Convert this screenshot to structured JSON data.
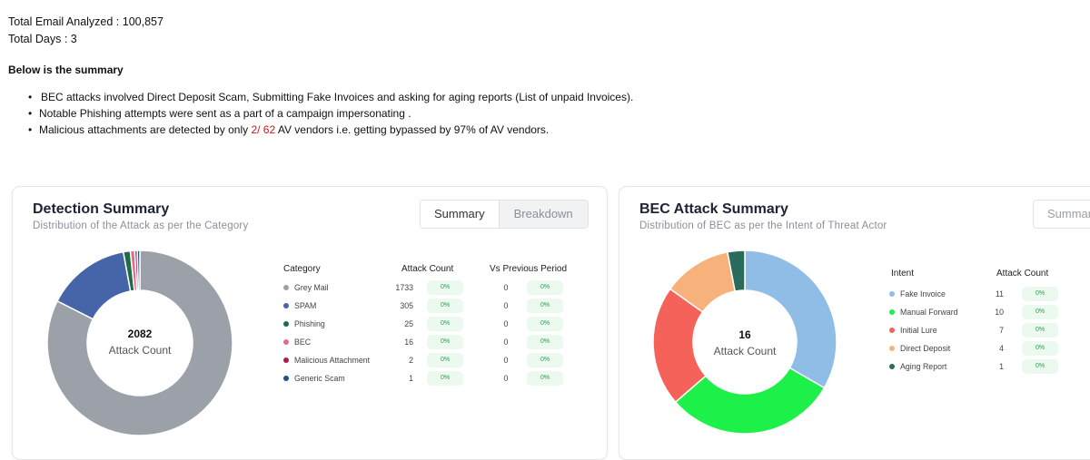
{
  "header": {
    "total_email_analyzed": "Total Email Analyzed : 100,857",
    "total_days": "Total Days : 3",
    "summary_heading": "Below is the  summary"
  },
  "bullets": [
    "BEC attacks involved Direct Deposit Scam, Submitting Fake Invoices and asking for aging reports (List of unpaid Invoices).",
    "Notable Phishing attempts were sent as a part of a campaign impersonating ."
  ],
  "bullet3": {
    "prefix": "Malicious attachments are detected by only ",
    "highlight": "2/ 62",
    "suffix": " AV vendors i.e. getting bypassed by 97% of AV vendors."
  },
  "detection": {
    "title": "Detection Summary",
    "subtitle": "Distribution of the Attack as per the Category",
    "toggle": [
      "Summary",
      "Breakdown"
    ],
    "center_value": "2082",
    "center_label": "Attack Count",
    "headers": [
      "Category",
      "Attack Count",
      "Vs Previous Period"
    ],
    "rows": [
      {
        "name": "Grey Mail",
        "count": "1733",
        "value": 1733,
        "color": "#9ca0a8",
        "badge": "0%",
        "prev": "0",
        "badge2": "0%"
      },
      {
        "name": "SPAM",
        "count": "305",
        "value": 305,
        "color": "#4565a8",
        "badge": "0%",
        "prev": "0",
        "badge2": "0%"
      },
      {
        "name": "Phishing",
        "count": "25",
        "value": 25,
        "color": "#1f6b4a",
        "badge": "0%",
        "prev": "0",
        "badge2": "0%"
      },
      {
        "name": "BEC",
        "count": "16",
        "value": 16,
        "color": "#e86a86",
        "badge": "0%",
        "prev": "0",
        "badge2": "0%"
      },
      {
        "name": "Malicious Attachment",
        "count": "2",
        "value": 2,
        "color": "#b5174a",
        "badge": "0%",
        "prev": "0",
        "badge2": "0%"
      },
      {
        "name": "Generic Scam",
        "count": "1",
        "value": 1,
        "color": "#1a5680",
        "badge": "0%",
        "prev": "0",
        "badge2": "0%"
      }
    ]
  },
  "bec": {
    "title": "BEC Attack Summary",
    "subtitle": "Distribution of BEC as per the Intent of Threat Actor",
    "toggle": [
      "Summar"
    ],
    "center_value": "16",
    "center_label": "Attack Count",
    "headers": [
      "Intent",
      "Attack Count"
    ],
    "rows": [
      {
        "name": "Fake Invoice",
        "count": "11",
        "value": 11,
        "color": "#8fbde6",
        "badge": "0%"
      },
      {
        "name": "Manual Forward",
        "count": "10",
        "value": 10,
        "color": "#1ef04a",
        "badge": "0%"
      },
      {
        "name": "Initial Lure",
        "count": "7",
        "value": 7,
        "color": "#f4625a",
        "badge": "0%"
      },
      {
        "name": "Direct Deposit",
        "count": "4",
        "value": 4,
        "color": "#f7b27c",
        "badge": "0%"
      },
      {
        "name": "Aging Report",
        "count": "1",
        "value": 1,
        "color": "#2a6b5c",
        "badge": "0%"
      }
    ]
  }
}
